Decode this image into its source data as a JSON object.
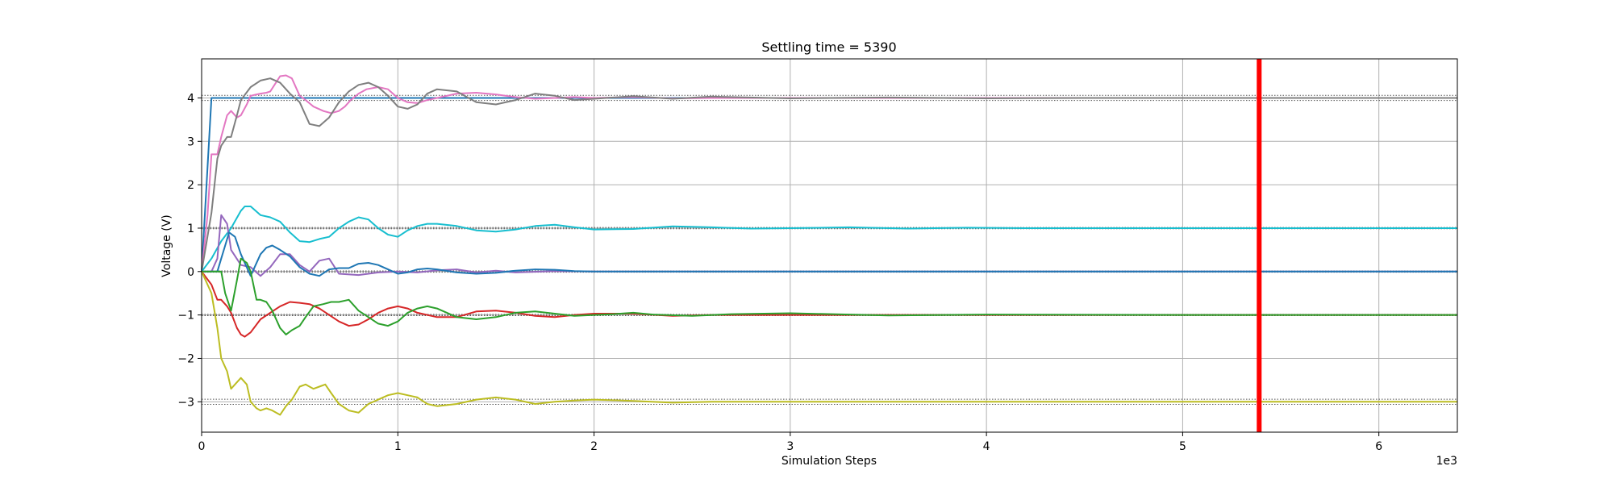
{
  "chart_data": {
    "type": "line",
    "title": "Settling time = 5390",
    "xlabel": "Simulation Steps",
    "ylabel": "Voltage (V)",
    "x_multiplier_label": "1e3",
    "xlim": [
      0,
      6.4
    ],
    "ylim": [
      -3.7,
      4.9
    ],
    "x_ticks": [
      0,
      1,
      2,
      3,
      4,
      5,
      6
    ],
    "x_tick_labels": [
      "0",
      "1",
      "2",
      "3",
      "4",
      "5",
      "6"
    ],
    "y_ticks": [
      -3,
      -2,
      -1,
      0,
      1,
      2,
      3,
      4
    ],
    "y_tick_labels": [
      "−3",
      "−2",
      "−1",
      "0",
      "1",
      "2",
      "3",
      "4"
    ],
    "grid": true,
    "settling_time": 5390,
    "settling_marker_color": "#ff0000",
    "tolerance_bands": [
      {
        "center": 4,
        "low": 3.94,
        "high": 4.06
      },
      {
        "center": 1,
        "low": 0.985,
        "high": 1.015
      },
      {
        "center": 0,
        "low": -0.015,
        "high": 0.015
      },
      {
        "center": -1,
        "low": -1.015,
        "high": -0.985
      },
      {
        "center": -3,
        "low": -3.06,
        "high": -2.94
      }
    ],
    "series": [
      {
        "color": "#1f77b4",
        "target": 4,
        "x": [
          0,
          0.05,
          6.4
        ],
        "values": [
          0,
          4.0,
          4.0
        ]
      },
      {
        "color": "#e377c2",
        "target": 4,
        "x": [
          0,
          0.03,
          0.05,
          0.08,
          0.1,
          0.13,
          0.15,
          0.18,
          0.2,
          0.23,
          0.25,
          0.28,
          0.3,
          0.33,
          0.35,
          0.4,
          0.43,
          0.46,
          0.5,
          0.53,
          0.57,
          0.62,
          0.66,
          0.7,
          0.73,
          0.76,
          0.8,
          0.84,
          0.9,
          0.95,
          1.0,
          1.05,
          1.1,
          1.15,
          1.2,
          1.3,
          1.4,
          1.5,
          1.6,
          1.7,
          1.8,
          1.9,
          2.0,
          2.2,
          2.4,
          2.6,
          6.4
        ],
        "values": [
          0,
          1.3,
          2.7,
          2.7,
          3.1,
          3.6,
          3.7,
          3.55,
          3.6,
          3.85,
          4.05,
          4.08,
          4.1,
          4.12,
          4.15,
          4.5,
          4.52,
          4.45,
          4.05,
          3.95,
          3.8,
          3.7,
          3.65,
          3.7,
          3.8,
          3.95,
          4.1,
          4.2,
          4.25,
          4.2,
          4.0,
          3.9,
          3.88,
          3.95,
          4.0,
          4.1,
          4.12,
          4.08,
          4.02,
          3.98,
          4.0,
          4.02,
          4.0,
          4.02,
          3.99,
          4.0,
          4.0
        ]
      },
      {
        "color": "#7f7f7f",
        "target": 4,
        "x": [
          0,
          0.05,
          0.08,
          0.1,
          0.13,
          0.15,
          0.18,
          0.2,
          0.25,
          0.3,
          0.35,
          0.4,
          0.45,
          0.5,
          0.55,
          0.6,
          0.65,
          0.7,
          0.75,
          0.8,
          0.85,
          0.9,
          0.95,
          1.0,
          1.05,
          1.1,
          1.15,
          1.2,
          1.3,
          1.4,
          1.5,
          1.6,
          1.7,
          1.8,
          1.9,
          2.0,
          2.2,
          2.4,
          2.6,
          3.0,
          3.5,
          4.0,
          4.5,
          5.0,
          5.5,
          6.0,
          6.4
        ],
        "values": [
          0,
          1.35,
          2.6,
          2.9,
          3.1,
          3.1,
          3.6,
          3.95,
          4.25,
          4.4,
          4.45,
          4.35,
          4.1,
          3.9,
          3.4,
          3.35,
          3.55,
          3.9,
          4.15,
          4.3,
          4.35,
          4.25,
          4.05,
          3.8,
          3.75,
          3.85,
          4.1,
          4.2,
          4.15,
          3.9,
          3.85,
          3.95,
          4.1,
          4.05,
          3.95,
          3.98,
          4.04,
          3.98,
          4.03,
          3.99,
          4.01,
          3.99,
          4.0,
          4.0,
          4.0,
          4.0,
          4.0
        ]
      },
      {
        "color": "#17becf",
        "target": 1,
        "x": [
          0,
          0.05,
          0.1,
          0.15,
          0.2,
          0.22,
          0.25,
          0.3,
          0.35,
          0.4,
          0.45,
          0.5,
          0.55,
          0.6,
          0.65,
          0.7,
          0.75,
          0.8,
          0.85,
          0.9,
          0.95,
          1.0,
          1.05,
          1.1,
          1.15,
          1.2,
          1.3,
          1.4,
          1.5,
          1.6,
          1.7,
          1.8,
          1.9,
          2.0,
          2.2,
          2.4,
          2.6,
          2.8,
          3.0,
          3.3,
          3.6,
          3.9,
          4.2,
          5.0,
          6.4
        ],
        "values": [
          0,
          0.3,
          0.7,
          1.0,
          1.4,
          1.5,
          1.5,
          1.3,
          1.25,
          1.15,
          0.9,
          0.7,
          0.68,
          0.75,
          0.8,
          1.0,
          1.15,
          1.25,
          1.2,
          1.0,
          0.85,
          0.8,
          0.95,
          1.05,
          1.1,
          1.1,
          1.05,
          0.95,
          0.92,
          0.97,
          1.05,
          1.08,
          1.02,
          0.97,
          0.98,
          1.04,
          1.02,
          0.99,
          1.0,
          1.02,
          0.99,
          1.01,
          1.0,
          1.0,
          1.0
        ]
      },
      {
        "color": "#9467bd",
        "target": 0,
        "x": [
          0,
          0.05,
          0.08,
          0.1,
          0.13,
          0.15,
          0.2,
          0.25,
          0.3,
          0.35,
          0.4,
          0.45,
          0.5,
          0.55,
          0.6,
          0.65,
          0.7,
          0.8,
          0.9,
          1.0,
          1.1,
          1.2,
          1.3,
          1.4,
          1.5,
          1.6,
          1.8,
          2.0,
          2.5,
          3.0,
          4.0,
          5.0,
          6.4
        ],
        "values": [
          0,
          0,
          0.3,
          1.3,
          1.1,
          0.5,
          0.15,
          0.1,
          -0.1,
          0.1,
          0.4,
          0.4,
          0.15,
          0.0,
          0.25,
          0.3,
          -0.05,
          -0.08,
          -0.02,
          0.0,
          -0.02,
          0.03,
          0.05,
          -0.02,
          0.02,
          -0.02,
          0.01,
          0.0,
          0.0,
          0.0,
          0.0,
          0.0,
          0.0
        ]
      },
      {
        "color": "#1f77b4",
        "target": 0,
        "x": [
          0,
          0.05,
          0.08,
          0.1,
          0.12,
          0.14,
          0.17,
          0.2,
          0.25,
          0.3,
          0.33,
          0.36,
          0.4,
          0.45,
          0.5,
          0.55,
          0.6,
          0.65,
          0.7,
          0.75,
          0.8,
          0.85,
          0.9,
          0.95,
          1.0,
          1.05,
          1.1,
          1.15,
          1.2,
          1.3,
          1.4,
          1.5,
          1.6,
          1.7,
          1.8,
          1.9,
          2.0,
          2.5,
          3.0,
          4.0,
          6.4
        ],
        "values": [
          0,
          0,
          0,
          0.3,
          0.6,
          0.9,
          0.8,
          0.4,
          -0.1,
          0.4,
          0.55,
          0.6,
          0.5,
          0.35,
          0.1,
          -0.05,
          -0.1,
          0.05,
          0.08,
          0.08,
          0.18,
          0.2,
          0.15,
          0.05,
          -0.05,
          -0.02,
          0.05,
          0.07,
          0.05,
          -0.02,
          -0.05,
          -0.03,
          0.02,
          0.05,
          0.04,
          0.01,
          0.0,
          0.0,
          0.0,
          0.0,
          0.0
        ]
      },
      {
        "color": "#d62728",
        "target": -1,
        "x": [
          0,
          0.05,
          0.08,
          0.1,
          0.13,
          0.15,
          0.18,
          0.2,
          0.22,
          0.25,
          0.3,
          0.35,
          0.4,
          0.45,
          0.5,
          0.55,
          0.6,
          0.65,
          0.7,
          0.75,
          0.8,
          0.85,
          0.9,
          0.95,
          1.0,
          1.05,
          1.1,
          1.2,
          1.3,
          1.4,
          1.5,
          1.6,
          1.7,
          1.8,
          1.9,
          2.0,
          2.2,
          2.4,
          2.6,
          3.0,
          6.4
        ],
        "values": [
          0,
          -0.3,
          -0.65,
          -0.65,
          -0.8,
          -0.95,
          -1.3,
          -1.45,
          -1.5,
          -1.4,
          -1.1,
          -0.95,
          -0.8,
          -0.7,
          -0.72,
          -0.75,
          -0.85,
          -1.0,
          -1.15,
          -1.25,
          -1.22,
          -1.1,
          -0.95,
          -0.85,
          -0.8,
          -0.85,
          -0.95,
          -1.05,
          -1.05,
          -0.92,
          -0.9,
          -0.95,
          -1.02,
          -1.05,
          -1.0,
          -0.97,
          -0.97,
          -1.02,
          -1.0,
          -1.0,
          -1.0
        ]
      },
      {
        "color": "#2ca02c",
        "target": -1,
        "x": [
          0,
          0.1,
          0.12,
          0.15,
          0.18,
          0.2,
          0.23,
          0.25,
          0.28,
          0.3,
          0.33,
          0.36,
          0.4,
          0.43,
          0.46,
          0.5,
          0.53,
          0.57,
          0.62,
          0.66,
          0.7,
          0.75,
          0.8,
          0.85,
          0.9,
          0.95,
          1.0,
          1.05,
          1.1,
          1.15,
          1.2,
          1.3,
          1.4,
          1.5,
          1.6,
          1.7,
          1.8,
          1.9,
          2.0,
          2.1,
          2.2,
          2.3,
          2.5,
          2.7,
          3.0,
          3.5,
          4.0,
          5.0,
          6.4
        ],
        "values": [
          0,
          0,
          -0.5,
          -0.9,
          -0.2,
          0.3,
          0.2,
          0.0,
          -0.65,
          -0.65,
          -0.7,
          -0.9,
          -1.3,
          -1.45,
          -1.35,
          -1.25,
          -1.05,
          -0.8,
          -0.75,
          -0.7,
          -0.7,
          -0.65,
          -0.9,
          -1.05,
          -1.2,
          -1.25,
          -1.15,
          -0.95,
          -0.85,
          -0.8,
          -0.85,
          -1.05,
          -1.1,
          -1.05,
          -0.95,
          -0.92,
          -0.97,
          -1.02,
          -1.0,
          -0.98,
          -0.95,
          -0.99,
          -1.02,
          -0.98,
          -0.96,
          -1.01,
          -0.99,
          -1.0,
          -1.0
        ]
      },
      {
        "color": "#bcbd22",
        "target": -3,
        "x": [
          0,
          0.05,
          0.08,
          0.1,
          0.13,
          0.15,
          0.18,
          0.2,
          0.23,
          0.25,
          0.28,
          0.3,
          0.33,
          0.36,
          0.4,
          0.43,
          0.46,
          0.5,
          0.53,
          0.57,
          0.6,
          0.63,
          0.66,
          0.7,
          0.75,
          0.8,
          0.85,
          0.9,
          0.95,
          1.0,
          1.05,
          1.1,
          1.15,
          1.2,
          1.3,
          1.4,
          1.5,
          1.6,
          1.7,
          1.8,
          1.9,
          2.0,
          2.2,
          2.4,
          2.6,
          3.0,
          3.5,
          4.0,
          5.0,
          6.4
        ],
        "values": [
          0,
          -0.5,
          -1.3,
          -2.0,
          -2.3,
          -2.7,
          -2.55,
          -2.45,
          -2.6,
          -3.0,
          -3.15,
          -3.2,
          -3.15,
          -3.2,
          -3.3,
          -3.1,
          -2.95,
          -2.65,
          -2.6,
          -2.7,
          -2.65,
          -2.6,
          -2.8,
          -3.05,
          -3.2,
          -3.25,
          -3.05,
          -2.95,
          -2.85,
          -2.8,
          -2.85,
          -2.9,
          -3.05,
          -3.1,
          -3.05,
          -2.95,
          -2.9,
          -2.95,
          -3.05,
          -3.0,
          -2.97,
          -2.95,
          -2.98,
          -3.02,
          -3.0,
          -3.0,
          -3.0,
          -3.0,
          -3.0,
          -3.0
        ]
      }
    ]
  }
}
